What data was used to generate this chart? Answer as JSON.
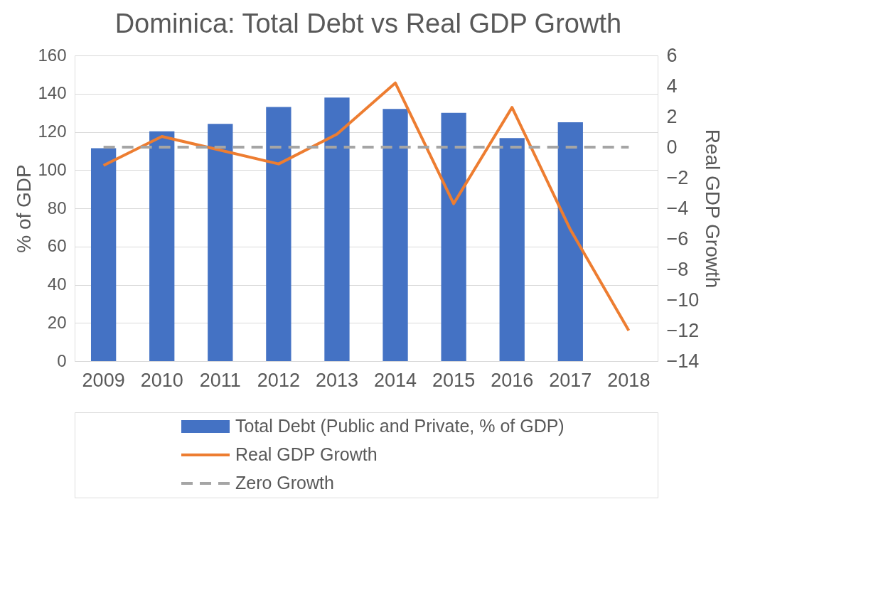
{
  "chart_data": {
    "type": "bar",
    "title": "Dominica: Total Debt vs Real GDP Growth",
    "ylabel": "% of GDP",
    "y2label": "Real GDP Growth",
    "categories": [
      "2009",
      "2010",
      "2011",
      "2012",
      "2013",
      "2014",
      "2015",
      "2016",
      "2017",
      "2018"
    ],
    "series": [
      {
        "name": "Total Debt (Public and Private, % of GDP)",
        "color": "#4472c4",
        "values": [
          111.4,
          120.3,
          124.2,
          133,
          138,
          132,
          130,
          116.7,
          125,
          null
        ]
      },
      {
        "name": "Real GDP Growth",
        "type": "line",
        "axis": "y2",
        "color": "#ed7d31",
        "values": [
          -1.2,
          0.7,
          -0.2,
          -1.1,
          0.85,
          4.2,
          -3.7,
          2.6,
          -5.4,
          -12
        ]
      },
      {
        "name": "Zero Growth",
        "type": "line",
        "axis": "y2",
        "color": "#a5a5a5",
        "line_style": "dashed",
        "values": [
          0,
          0,
          0,
          0,
          0,
          0,
          0,
          0,
          0,
          0
        ]
      }
    ],
    "ylim": [
      0,
      160
    ],
    "yticks": [
      0,
      20,
      40,
      60,
      80,
      100,
      120,
      140,
      160
    ],
    "y2lim": [
      -14,
      6
    ],
    "y2ticks": [
      -14,
      -12,
      -10,
      -8,
      -6,
      -4,
      -2,
      0,
      2,
      4,
      6
    ],
    "grid": "y",
    "legend": "bottom"
  }
}
